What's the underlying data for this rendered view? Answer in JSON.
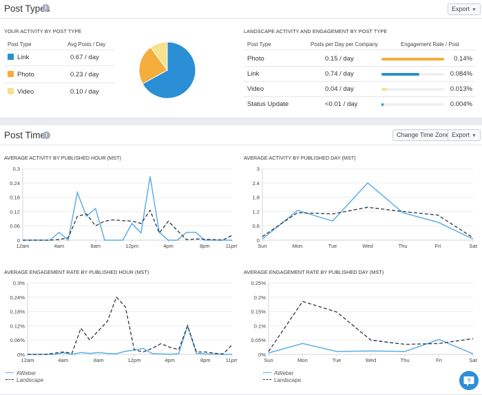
{
  "colors": {
    "link": "#2a8fd4",
    "photo": "#f5ad3c",
    "video": "#f6e18e",
    "status_update": "#2a8fd4",
    "aweber": "#5aaee8",
    "landscape": "#2c3340"
  },
  "post_types": {
    "title": "Post Types",
    "info_icon": "info-icon",
    "export_label": "Export",
    "your_activity": {
      "title": "YOUR ACTIVITY BY POST TYPE",
      "headers": [
        "Post Type",
        "Avg Posts / Day"
      ],
      "rows": [
        {
          "type": "Link",
          "value": "0.67 / day",
          "color": "#2a8fd4"
        },
        {
          "type": "Photo",
          "value": "0.23 / day",
          "color": "#f5ad3c"
        },
        {
          "type": "Video",
          "value": "0.10 / day",
          "color": "#f6e18e"
        }
      ]
    },
    "pie_data": {
      "type": "pie",
      "slices": [
        {
          "label": "Link",
          "value": 0.67,
          "color": "#2a8fd4"
        },
        {
          "label": "Photo",
          "value": 0.23,
          "color": "#f5ad3c"
        },
        {
          "label": "Video",
          "value": 0.1,
          "color": "#f6e18e"
        }
      ]
    },
    "landscape": {
      "title": "LANDSCAPE ACTIVITY AND ENGAGEMENT BY POST TYPE",
      "headers": [
        "Post Type",
        "Posts per Day per Company",
        "Engagement Rate / Post"
      ],
      "rows": [
        {
          "type": "Photo",
          "posts": "0.15 / day",
          "rate": "0.14%",
          "fill": 1.0,
          "color": "#f5ad3c"
        },
        {
          "type": "Link",
          "posts": "0.74 / day",
          "rate": "0.084%",
          "fill": 0.6,
          "color": "#2a8fd4"
        },
        {
          "type": "Video",
          "posts": "0.04 / day",
          "rate": "0.013%",
          "fill": 0.093,
          "color": "#f6e18e"
        },
        {
          "type": "Status Update",
          "posts": "<0.01 / day",
          "rate": "0.004%",
          "fill": 0.029,
          "color": "#2a8fd4"
        }
      ]
    }
  },
  "post_times": {
    "title": "Post Times",
    "info_icon": "info-icon",
    "change_tz_label": "Change Time Zone...",
    "export_label": "Export",
    "legend": [
      "AWeber",
      "Landscape"
    ]
  },
  "chart_data": [
    {
      "type": "line",
      "title": "AVERAGE ACTIVITY BY PUBLISHED HOUR (MST)",
      "x_ticks": [
        "12am",
        "4am",
        "8am",
        "12pm",
        "4pm",
        "8pm",
        "11pm"
      ],
      "x_tick_hours": [
        0,
        4,
        8,
        12,
        16,
        20,
        23
      ],
      "x": [
        0,
        1,
        2,
        3,
        4,
        5,
        6,
        7,
        8,
        9,
        10,
        11,
        12,
        13,
        14,
        15,
        16,
        17,
        18,
        19,
        20,
        21,
        22,
        23
      ],
      "y_ticks": [
        "0",
        "0.06",
        "0.12",
        "0.18",
        "0.24",
        "0.3"
      ],
      "ylim": [
        0,
        0.3
      ],
      "series": [
        {
          "name": "AWeber",
          "values": [
            0,
            0,
            0,
            0,
            0.033,
            0,
            0.2,
            0.1,
            0.133,
            0,
            0,
            0,
            0.07,
            0.03,
            0.267,
            0.033,
            0,
            0,
            0.033,
            0.033,
            0,
            0,
            0,
            0
          ]
        },
        {
          "name": "Landscape",
          "values": [
            0,
            0,
            0,
            0,
            0.003,
            0.01,
            0.1,
            0.11,
            0.06,
            0.08,
            0.085,
            0.082,
            0.08,
            0.07,
            0.125,
            0.03,
            0.08,
            0.04,
            0.002,
            0.005,
            0.004,
            0.002,
            0.001,
            0.02
          ]
        }
      ]
    },
    {
      "type": "line",
      "title": "AVERAGE ACTIVITY BY PUBLISHED DAY (MST)",
      "categories": [
        "Sun",
        "Mon",
        "Tue",
        "Wed",
        "Thu",
        "Fri",
        "Sat"
      ],
      "y_ticks": [
        "0",
        "0.6",
        "1.2",
        "1.8",
        "2.4",
        "3"
      ],
      "ylim": [
        0,
        3
      ],
      "series": [
        {
          "name": "AWeber",
          "values": [
            0.05,
            1.25,
            0.8,
            2.4,
            1.15,
            0.75,
            0.05
          ]
        },
        {
          "name": "Landscape",
          "values": [
            0.15,
            1.15,
            1.1,
            1.38,
            1.2,
            1.05,
            0.1
          ]
        }
      ]
    },
    {
      "type": "line",
      "title": "AVERAGE ENGAGEMENT RATE BY PUBLISHED HOUR (MST)",
      "x_ticks": [
        "12am",
        "4am",
        "8am",
        "12pm",
        "4pm",
        "8pm",
        "11pm"
      ],
      "x_tick_hours": [
        0,
        4,
        8,
        12,
        16,
        20,
        23
      ],
      "x": [
        0,
        1,
        2,
        3,
        4,
        5,
        6,
        7,
        8,
        9,
        10,
        11,
        12,
        13,
        14,
        15,
        16,
        17,
        18,
        19,
        20,
        21,
        22,
        23
      ],
      "y_ticks": [
        "0%",
        "0.06%",
        "0.12%",
        "0.18%",
        "0.24%",
        "0.3%"
      ],
      "ylim": [
        0,
        0.3
      ],
      "series": [
        {
          "name": "AWeber",
          "values": [
            0,
            0,
            0,
            0,
            0.007,
            0,
            0.008,
            0.004,
            0.008,
            0.004,
            0.003,
            0.013,
            0.018,
            0.025,
            0.004,
            0.002,
            0.001,
            0.003,
            0.12,
            0.004,
            0.002,
            0.001,
            0,
            0
          ]
        },
        {
          "name": "Landscape",
          "values": [
            0,
            0,
            0,
            0.005,
            0.01,
            0.005,
            0.11,
            0.06,
            0.1,
            0.14,
            0.24,
            0.2,
            0.02,
            0.01,
            0.025,
            0.045,
            0.03,
            0.02,
            0.12,
            0.01,
            0.01,
            0.005,
            0.002,
            0.04
          ]
        }
      ]
    },
    {
      "type": "line",
      "title": "AVERAGE ENGAGEMENT RATE BY PUBLISHED DAY (MST)",
      "categories": [
        "Sun",
        "Mon",
        "Tue",
        "Wed",
        "Thu",
        "Fri",
        "Sat"
      ],
      "y_ticks": [
        "0%",
        "0.05%",
        "0.1%",
        "0.15%",
        "0.2%",
        "0.25%"
      ],
      "ylim": [
        0,
        0.25
      ],
      "series": [
        {
          "name": "AWeber",
          "values": [
            0.005,
            0.038,
            0.01,
            0.012,
            0.01,
            0.052,
            0.002
          ]
        },
        {
          "name": "Landscape",
          "values": [
            0.01,
            0.185,
            0.148,
            0.05,
            0.035,
            0.038,
            0.055
          ]
        }
      ]
    }
  ]
}
